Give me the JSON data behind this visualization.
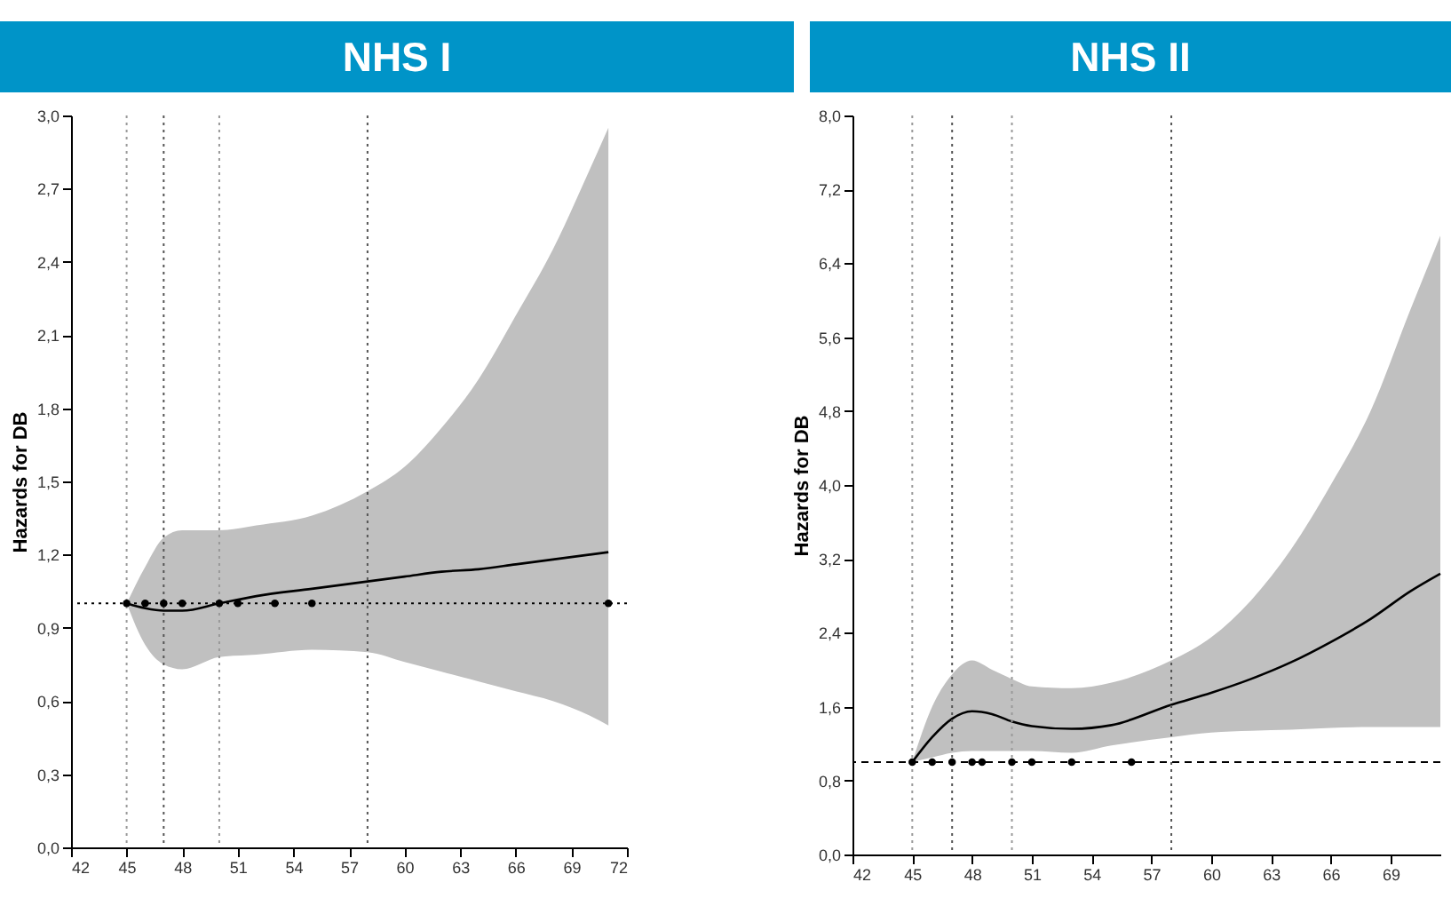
{
  "chart_data": [
    {
      "type": "line",
      "title": "NHS I",
      "ylabel": "Hazards for DB",
      "xlim": [
        42,
        72
      ],
      "xticks": [
        42,
        45,
        48,
        51,
        54,
        57,
        60,
        63,
        66,
        69,
        72
      ],
      "ylim": [
        0,
        3.0
      ],
      "yticks": [
        {
          "value": 0,
          "label": "0,0"
        },
        {
          "value": 0.3,
          "label": "0,3"
        },
        {
          "value": 0.6,
          "label": "0,6"
        },
        {
          "value": 0.9,
          "label": "0,9"
        },
        {
          "value": 1.2,
          "label": "1,2"
        },
        {
          "value": 1.5,
          "label": "1,5"
        },
        {
          "value": 1.8,
          "label": "1,8"
        },
        {
          "value": 2.1,
          "label": "2,1"
        },
        {
          "value": 2.4,
          "label": "2,4"
        },
        {
          "value": 2.7,
          "label": "2,7"
        },
        {
          "value": 3.0,
          "label": "3,0"
        }
      ],
      "series": [
        {
          "type": "line",
          "color": "#000000",
          "x": [
            45,
            46,
            47,
            48,
            50,
            52,
            55,
            58,
            60,
            62,
            64,
            66,
            68,
            70,
            71
          ],
          "values": [
            1.0,
            0.98,
            0.97,
            0.97,
            1.0,
            1.03,
            1.06,
            1.09,
            1.11,
            1.13,
            1.14,
            1.16,
            1.18,
            1.2,
            1.21
          ],
          "lower": [
            1.0,
            0.83,
            0.75,
            0.73,
            0.78,
            0.79,
            0.81,
            0.8,
            0.76,
            0.72,
            0.68,
            0.64,
            0.6,
            0.54,
            0.5
          ],
          "upper": [
            1.0,
            1.15,
            1.27,
            1.3,
            1.3,
            1.32,
            1.36,
            1.46,
            1.56,
            1.72,
            1.92,
            2.18,
            2.45,
            2.78,
            2.95
          ]
        },
        {
          "type": "scatter",
          "color": "#000000",
          "marker": "circle",
          "x": [
            45,
            46,
            47,
            48,
            50,
            51,
            53,
            55,
            71
          ],
          "values": [
            1.0,
            1.0,
            1.0,
            1.0,
            1.0,
            1.0,
            1.0,
            1.0,
            1.0
          ]
        }
      ],
      "ref_lines": [
        {
          "axis": "y",
          "value": 1.0,
          "line_style": "dotted",
          "color": "#000000"
        },
        {
          "axis": "x",
          "value": 45,
          "line_style": "dotted",
          "color": "#999999"
        },
        {
          "axis": "x",
          "value": 47,
          "line_style": "dotted",
          "color": "#555555"
        },
        {
          "axis": "x",
          "value": 50,
          "line_style": "dotted",
          "color": "#999999"
        },
        {
          "axis": "x",
          "value": 58,
          "line_style": "dotted",
          "color": "#555555"
        }
      ],
      "grid": false
    },
    {
      "type": "line",
      "title": "NHS II",
      "ylabel": "Hazards for DB",
      "xlim": [
        42,
        71.5
      ],
      "xticks": [
        42,
        45,
        48,
        51,
        54,
        57,
        60,
        63,
        66,
        69
      ],
      "ylim": [
        0,
        8.0
      ],
      "yticks": [
        {
          "value": 0,
          "label": "0,0"
        },
        {
          "value": 0.8,
          "label": "0,8"
        },
        {
          "value": 1.6,
          "label": "1,6"
        },
        {
          "value": 2.4,
          "label": "2,4"
        },
        {
          "value": 3.2,
          "label": "3,2"
        },
        {
          "value": 4.0,
          "label": "4,0"
        },
        {
          "value": 4.8,
          "label": "4,8"
        },
        {
          "value": 5.6,
          "label": "5,6"
        },
        {
          "value": 6.4,
          "label": "6,4"
        },
        {
          "value": 7.2,
          "label": "7,2"
        },
        {
          "value": 8.0,
          "label": "8,0"
        }
      ],
      "series": [
        {
          "type": "line",
          "color": "#000000",
          "x": [
            45,
            46,
            47,
            48,
            49,
            50,
            51,
            53,
            55,
            58,
            60,
            62,
            64,
            66,
            68,
            70,
            71.5
          ],
          "values": [
            1.0,
            1.27,
            1.47,
            1.55,
            1.52,
            1.44,
            1.39,
            1.36,
            1.4,
            1.62,
            1.75,
            1.9,
            2.08,
            2.3,
            2.55,
            2.85,
            3.04
          ],
          "lower": [
            1.0,
            1.05,
            1.1,
            1.12,
            1.12,
            1.12,
            1.12,
            1.1,
            1.18,
            1.27,
            1.32,
            1.34,
            1.35,
            1.37,
            1.38,
            1.38,
            1.38
          ],
          "upper": [
            1.0,
            1.6,
            1.95,
            2.1,
            2.0,
            1.9,
            1.82,
            1.8,
            1.86,
            2.1,
            2.35,
            2.75,
            3.3,
            4.0,
            4.8,
            5.9,
            6.7
          ]
        },
        {
          "type": "scatter",
          "color": "#000000",
          "marker": "circle",
          "x": [
            45,
            46,
            47,
            48,
            48.5,
            50,
            51,
            53,
            56
          ],
          "values": [
            1.0,
            1.0,
            1.0,
            1.0,
            1.0,
            1.0,
            1.0,
            1.0,
            1.0
          ]
        }
      ],
      "ref_lines": [
        {
          "axis": "y",
          "value": 1.0,
          "line_style": "dashed",
          "color": "#000000"
        },
        {
          "axis": "x",
          "value": 45,
          "line_style": "dotted",
          "color": "#999999"
        },
        {
          "axis": "x",
          "value": 47,
          "line_style": "dotted",
          "color": "#555555"
        },
        {
          "axis": "x",
          "value": 50,
          "line_style": "dotted",
          "color": "#999999"
        },
        {
          "axis": "x",
          "value": 58,
          "line_style": "dotted",
          "color": "#555555"
        }
      ],
      "grid": false
    }
  ]
}
